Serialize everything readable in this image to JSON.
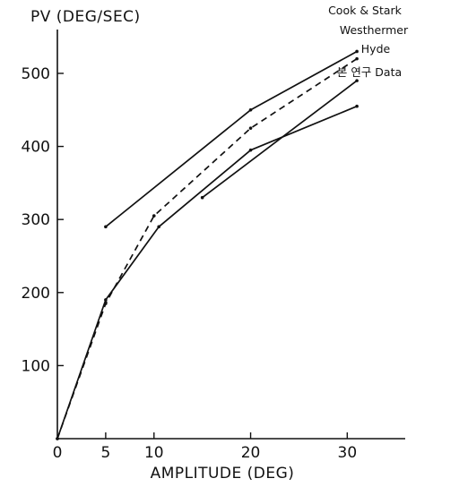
{
  "chart_data": {
    "type": "line",
    "ylabel": "PV (DEG/SEC)",
    "xlabel": "AMPLITUDE (DEG)",
    "xlim": [
      0,
      36
    ],
    "ylim": [
      0,
      560
    ],
    "x_ticks": [
      0,
      5,
      10,
      20,
      30
    ],
    "y_ticks": [
      100,
      200,
      300,
      400,
      500
    ],
    "grid": false,
    "series": [
      {
        "name": "Cook & Stark",
        "style": "solid",
        "points": [
          [
            5,
            290
          ],
          [
            20,
            450
          ],
          [
            31,
            530
          ]
        ]
      },
      {
        "name": "Westhermer",
        "style": "dashed",
        "points": [
          [
            0,
            0
          ],
          [
            5,
            185
          ],
          [
            10,
            305
          ],
          [
            20,
            425
          ],
          [
            31,
            520
          ]
        ]
      },
      {
        "name": "Hyde",
        "style": "solid",
        "points": [
          [
            15,
            330
          ],
          [
            31,
            490
          ]
        ]
      },
      {
        "name": "본 연구 Data",
        "style": "solid",
        "points": [
          [
            0,
            0
          ],
          [
            5,
            190
          ],
          [
            10.5,
            290
          ],
          [
            20,
            395
          ],
          [
            31,
            455
          ]
        ]
      }
    ]
  }
}
